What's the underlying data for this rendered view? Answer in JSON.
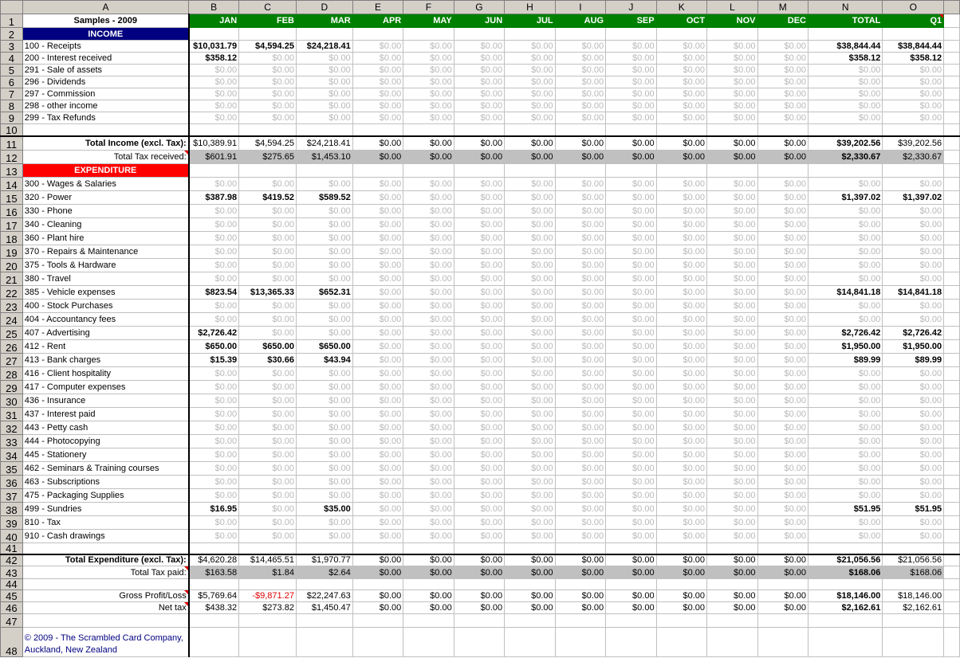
{
  "columns": [
    "A",
    "B",
    "C",
    "D",
    "E",
    "F",
    "G",
    "H",
    "I",
    "J",
    "K",
    "L",
    "M",
    "N",
    "O"
  ],
  "header_row": {
    "title": "Samples - 2009",
    "months": [
      "JAN",
      "FEB",
      "MAR",
      "APR",
      "MAY",
      "JUN",
      "JUL",
      "AUG",
      "SEP",
      "OCT",
      "NOV",
      "DEC",
      "TOTAL",
      "Q1"
    ]
  },
  "colors": {
    "month_header": "#008000",
    "income_header": "#000080",
    "expenditure_header": "#ff0000",
    "tax_band": "#c0c0c0",
    "negative": "#e00000",
    "footer_text": "#000080"
  },
  "rows": [
    {
      "n": "2",
      "kind": "inc",
      "label": "INCOME"
    },
    {
      "n": "3",
      "kind": "item",
      "label": "100 - Receipts",
      "values": [
        "$10,031.79",
        "$4,594.25",
        "$24,218.41",
        "$0.00",
        "$0.00",
        "$0.00",
        "$0.00",
        "$0.00",
        "$0.00",
        "$0.00",
        "$0.00",
        "$0.00",
        "$38,844.44",
        "$38,844.44"
      ]
    },
    {
      "n": "4",
      "kind": "item",
      "label": "200 - Interest received",
      "values": [
        "$358.12",
        "$0.00",
        "$0.00",
        "$0.00",
        "$0.00",
        "$0.00",
        "$0.00",
        "$0.00",
        "$0.00",
        "$0.00",
        "$0.00",
        "$0.00",
        "$358.12",
        "$358.12"
      ]
    },
    {
      "n": "5",
      "kind": "item",
      "label": "291 - Sale of assets",
      "values": [
        "$0.00",
        "$0.00",
        "$0.00",
        "$0.00",
        "$0.00",
        "$0.00",
        "$0.00",
        "$0.00",
        "$0.00",
        "$0.00",
        "$0.00",
        "$0.00",
        "$0.00",
        "$0.00"
      ]
    },
    {
      "n": "6",
      "kind": "item",
      "label": "296 - Dividends",
      "values": [
        "$0.00",
        "$0.00",
        "$0.00",
        "$0.00",
        "$0.00",
        "$0.00",
        "$0.00",
        "$0.00",
        "$0.00",
        "$0.00",
        "$0.00",
        "$0.00",
        "$0.00",
        "$0.00"
      ]
    },
    {
      "n": "7",
      "kind": "item",
      "label": "297 - Commission",
      "values": [
        "$0.00",
        "$0.00",
        "$0.00",
        "$0.00",
        "$0.00",
        "$0.00",
        "$0.00",
        "$0.00",
        "$0.00",
        "$0.00",
        "$0.00",
        "$0.00",
        "$0.00",
        "$0.00"
      ]
    },
    {
      "n": "8",
      "kind": "item",
      "label": "298 - other income",
      "values": [
        "$0.00",
        "$0.00",
        "$0.00",
        "$0.00",
        "$0.00",
        "$0.00",
        "$0.00",
        "$0.00",
        "$0.00",
        "$0.00",
        "$0.00",
        "$0.00",
        "$0.00",
        "$0.00"
      ]
    },
    {
      "n": "9",
      "kind": "item",
      "label": "299 - Tax Refunds",
      "values": [
        "$0.00",
        "$0.00",
        "$0.00",
        "$0.00",
        "$0.00",
        "$0.00",
        "$0.00",
        "$0.00",
        "$0.00",
        "$0.00",
        "$0.00",
        "$0.00",
        "$0.00",
        "$0.00"
      ]
    },
    {
      "n": "10",
      "kind": "blank"
    },
    {
      "n": "11",
      "kind": "total",
      "label": "Total Income (excl. Tax):",
      "values": [
        "$10,389.91",
        "$4,594.25",
        "$24,218.41",
        "$0.00",
        "$0.00",
        "$0.00",
        "$0.00",
        "$0.00",
        "$0.00",
        "$0.00",
        "$0.00",
        "$0.00",
        "$39,202.56",
        "$39,202.56"
      ]
    },
    {
      "n": "12",
      "kind": "tax",
      "label": "Total Tax received:",
      "values": [
        "$601.91",
        "$275.65",
        "$1,453.10",
        "$0.00",
        "$0.00",
        "$0.00",
        "$0.00",
        "$0.00",
        "$0.00",
        "$0.00",
        "$0.00",
        "$0.00",
        "$2,330.67",
        "$2,330.67"
      ]
    },
    {
      "n": "13",
      "kind": "exp",
      "label": "EXPENDITURE"
    },
    {
      "n": "14",
      "kind": "item",
      "label": "300 - Wages & Salaries",
      "values": [
        "$0.00",
        "$0.00",
        "$0.00",
        "$0.00",
        "$0.00",
        "$0.00",
        "$0.00",
        "$0.00",
        "$0.00",
        "$0.00",
        "$0.00",
        "$0.00",
        "$0.00",
        "$0.00"
      ]
    },
    {
      "n": "15",
      "kind": "item",
      "label": "320 - Power",
      "values": [
        "$387.98",
        "$419.52",
        "$589.52",
        "$0.00",
        "$0.00",
        "$0.00",
        "$0.00",
        "$0.00",
        "$0.00",
        "$0.00",
        "$0.00",
        "$0.00",
        "$1,397.02",
        "$1,397.02"
      ]
    },
    {
      "n": "16",
      "kind": "item",
      "label": "330 - Phone",
      "values": [
        "$0.00",
        "$0.00",
        "$0.00",
        "$0.00",
        "$0.00",
        "$0.00",
        "$0.00",
        "$0.00",
        "$0.00",
        "$0.00",
        "$0.00",
        "$0.00",
        "$0.00",
        "$0.00"
      ]
    },
    {
      "n": "17",
      "kind": "item",
      "label": "340 - Cleaning",
      "values": [
        "$0.00",
        "$0.00",
        "$0.00",
        "$0.00",
        "$0.00",
        "$0.00",
        "$0.00",
        "$0.00",
        "$0.00",
        "$0.00",
        "$0.00",
        "$0.00",
        "$0.00",
        "$0.00"
      ]
    },
    {
      "n": "18",
      "kind": "item",
      "label": "360 - Plant hire",
      "values": [
        "$0.00",
        "$0.00",
        "$0.00",
        "$0.00",
        "$0.00",
        "$0.00",
        "$0.00",
        "$0.00",
        "$0.00",
        "$0.00",
        "$0.00",
        "$0.00",
        "$0.00",
        "$0.00"
      ]
    },
    {
      "n": "19",
      "kind": "item",
      "label": "370 - Repairs & Maintenance",
      "values": [
        "$0.00",
        "$0.00",
        "$0.00",
        "$0.00",
        "$0.00",
        "$0.00",
        "$0.00",
        "$0.00",
        "$0.00",
        "$0.00",
        "$0.00",
        "$0.00",
        "$0.00",
        "$0.00"
      ]
    },
    {
      "n": "20",
      "kind": "item",
      "label": "375 - Tools & Hardware",
      "values": [
        "$0.00",
        "$0.00",
        "$0.00",
        "$0.00",
        "$0.00",
        "$0.00",
        "$0.00",
        "$0.00",
        "$0.00",
        "$0.00",
        "$0.00",
        "$0.00",
        "$0.00",
        "$0.00"
      ]
    },
    {
      "n": "21",
      "kind": "item",
      "label": "380 - Travel",
      "values": [
        "$0.00",
        "$0.00",
        "$0.00",
        "$0.00",
        "$0.00",
        "$0.00",
        "$0.00",
        "$0.00",
        "$0.00",
        "$0.00",
        "$0.00",
        "$0.00",
        "$0.00",
        "$0.00"
      ]
    },
    {
      "n": "22",
      "kind": "item",
      "label": "385 - Vehicle expenses",
      "values": [
        "$823.54",
        "$13,365.33",
        "$652.31",
        "$0.00",
        "$0.00",
        "$0.00",
        "$0.00",
        "$0.00",
        "$0.00",
        "$0.00",
        "$0.00",
        "$0.00",
        "$14,841.18",
        "$14,841.18"
      ]
    },
    {
      "n": "23",
      "kind": "item",
      "label": "400 - Stock Purchases",
      "values": [
        "$0.00",
        "$0.00",
        "$0.00",
        "$0.00",
        "$0.00",
        "$0.00",
        "$0.00",
        "$0.00",
        "$0.00",
        "$0.00",
        "$0.00",
        "$0.00",
        "$0.00",
        "$0.00"
      ]
    },
    {
      "n": "24",
      "kind": "item",
      "label": "404 - Accountancy fees",
      "values": [
        "$0.00",
        "$0.00",
        "$0.00",
        "$0.00",
        "$0.00",
        "$0.00",
        "$0.00",
        "$0.00",
        "$0.00",
        "$0.00",
        "$0.00",
        "$0.00",
        "$0.00",
        "$0.00"
      ]
    },
    {
      "n": "25",
      "kind": "item",
      "label": "407 - Advertising",
      "values": [
        "$2,726.42",
        "$0.00",
        "$0.00",
        "$0.00",
        "$0.00",
        "$0.00",
        "$0.00",
        "$0.00",
        "$0.00",
        "$0.00",
        "$0.00",
        "$0.00",
        "$2,726.42",
        "$2,726.42"
      ]
    },
    {
      "n": "26",
      "kind": "item",
      "label": "412 - Rent",
      "values": [
        "$650.00",
        "$650.00",
        "$650.00",
        "$0.00",
        "$0.00",
        "$0.00",
        "$0.00",
        "$0.00",
        "$0.00",
        "$0.00",
        "$0.00",
        "$0.00",
        "$1,950.00",
        "$1,950.00"
      ]
    },
    {
      "n": "27",
      "kind": "item",
      "label": "413 - Bank charges",
      "values": [
        "$15.39",
        "$30.66",
        "$43.94",
        "$0.00",
        "$0.00",
        "$0.00",
        "$0.00",
        "$0.00",
        "$0.00",
        "$0.00",
        "$0.00",
        "$0.00",
        "$89.99",
        "$89.99"
      ]
    },
    {
      "n": "28",
      "kind": "item",
      "label": "416 - Client hospitality",
      "values": [
        "$0.00",
        "$0.00",
        "$0.00",
        "$0.00",
        "$0.00",
        "$0.00",
        "$0.00",
        "$0.00",
        "$0.00",
        "$0.00",
        "$0.00",
        "$0.00",
        "$0.00",
        "$0.00"
      ]
    },
    {
      "n": "29",
      "kind": "item",
      "label": "417 - Computer expenses",
      "values": [
        "$0.00",
        "$0.00",
        "$0.00",
        "$0.00",
        "$0.00",
        "$0.00",
        "$0.00",
        "$0.00",
        "$0.00",
        "$0.00",
        "$0.00",
        "$0.00",
        "$0.00",
        "$0.00"
      ]
    },
    {
      "n": "30",
      "kind": "item",
      "label": "436 - Insurance",
      "values": [
        "$0.00",
        "$0.00",
        "$0.00",
        "$0.00",
        "$0.00",
        "$0.00",
        "$0.00",
        "$0.00",
        "$0.00",
        "$0.00",
        "$0.00",
        "$0.00",
        "$0.00",
        "$0.00"
      ]
    },
    {
      "n": "31",
      "kind": "item",
      "label": "437 - Interest paid",
      "values": [
        "$0.00",
        "$0.00",
        "$0.00",
        "$0.00",
        "$0.00",
        "$0.00",
        "$0.00",
        "$0.00",
        "$0.00",
        "$0.00",
        "$0.00",
        "$0.00",
        "$0.00",
        "$0.00"
      ]
    },
    {
      "n": "32",
      "kind": "item",
      "label": "443 - Petty cash",
      "values": [
        "$0.00",
        "$0.00",
        "$0.00",
        "$0.00",
        "$0.00",
        "$0.00",
        "$0.00",
        "$0.00",
        "$0.00",
        "$0.00",
        "$0.00",
        "$0.00",
        "$0.00",
        "$0.00"
      ]
    },
    {
      "n": "33",
      "kind": "item",
      "label": "444 - Photocopying",
      "values": [
        "$0.00",
        "$0.00",
        "$0.00",
        "$0.00",
        "$0.00",
        "$0.00",
        "$0.00",
        "$0.00",
        "$0.00",
        "$0.00",
        "$0.00",
        "$0.00",
        "$0.00",
        "$0.00"
      ]
    },
    {
      "n": "34",
      "kind": "item",
      "label": "445 - Stationery",
      "values": [
        "$0.00",
        "$0.00",
        "$0.00",
        "$0.00",
        "$0.00",
        "$0.00",
        "$0.00",
        "$0.00",
        "$0.00",
        "$0.00",
        "$0.00",
        "$0.00",
        "$0.00",
        "$0.00"
      ]
    },
    {
      "n": "35",
      "kind": "item",
      "label": "462 - Seminars & Training courses",
      "values": [
        "$0.00",
        "$0.00",
        "$0.00",
        "$0.00",
        "$0.00",
        "$0.00",
        "$0.00",
        "$0.00",
        "$0.00",
        "$0.00",
        "$0.00",
        "$0.00",
        "$0.00",
        "$0.00"
      ]
    },
    {
      "n": "36",
      "kind": "item",
      "label": "463 - Subscriptions",
      "values": [
        "$0.00",
        "$0.00",
        "$0.00",
        "$0.00",
        "$0.00",
        "$0.00",
        "$0.00",
        "$0.00",
        "$0.00",
        "$0.00",
        "$0.00",
        "$0.00",
        "$0.00",
        "$0.00"
      ]
    },
    {
      "n": "37",
      "kind": "item",
      "label": "475 - Packaging Supplies",
      "values": [
        "$0.00",
        "$0.00",
        "$0.00",
        "$0.00",
        "$0.00",
        "$0.00",
        "$0.00",
        "$0.00",
        "$0.00",
        "$0.00",
        "$0.00",
        "$0.00",
        "$0.00",
        "$0.00"
      ]
    },
    {
      "n": "38",
      "kind": "item",
      "label": "499 - Sundries",
      "values": [
        "$16.95",
        "$0.00",
        "$35.00",
        "$0.00",
        "$0.00",
        "$0.00",
        "$0.00",
        "$0.00",
        "$0.00",
        "$0.00",
        "$0.00",
        "$0.00",
        "$51.95",
        "$51.95"
      ]
    },
    {
      "n": "39",
      "kind": "item",
      "label": "810 - Tax",
      "values": [
        "$0.00",
        "$0.00",
        "$0.00",
        "$0.00",
        "$0.00",
        "$0.00",
        "$0.00",
        "$0.00",
        "$0.00",
        "$0.00",
        "$0.00",
        "$0.00",
        "$0.00",
        "$0.00"
      ]
    },
    {
      "n": "40",
      "kind": "item",
      "label": "910 - Cash drawings",
      "values": [
        "$0.00",
        "$0.00",
        "$0.00",
        "$0.00",
        "$0.00",
        "$0.00",
        "$0.00",
        "$0.00",
        "$0.00",
        "$0.00",
        "$0.00",
        "$0.00",
        "$0.00",
        "$0.00"
      ]
    },
    {
      "n": "41",
      "kind": "blank"
    },
    {
      "n": "42",
      "kind": "total",
      "label": "Total Expenditure (excl. Tax):",
      "values": [
        "$4,620.28",
        "$14,465.51",
        "$1,970.77",
        "$0.00",
        "$0.00",
        "$0.00",
        "$0.00",
        "$0.00",
        "$0.00",
        "$0.00",
        "$0.00",
        "$0.00",
        "$21,056.56",
        "$21,056.56"
      ]
    },
    {
      "n": "43",
      "kind": "tax",
      "label": "Total Tax paid:",
      "values": [
        "$163.58",
        "$1.84",
        "$2.64",
        "$0.00",
        "$0.00",
        "$0.00",
        "$0.00",
        "$0.00",
        "$0.00",
        "$0.00",
        "$0.00",
        "$0.00",
        "$168.06",
        "$168.06"
      ]
    },
    {
      "n": "44",
      "kind": "blank"
    },
    {
      "n": "45",
      "kind": "profit",
      "label": "Gross Profit/Loss",
      "values": [
        "$5,769.64",
        "-$9,871.27",
        "$22,247.63",
        "$0.00",
        "$0.00",
        "$0.00",
        "$0.00",
        "$0.00",
        "$0.00",
        "$0.00",
        "$0.00",
        "$0.00",
        "$18,146.00",
        "$18,146.00"
      ]
    },
    {
      "n": "46",
      "kind": "profit",
      "label": "Net tax",
      "values": [
        "$438.32",
        "$273.82",
        "$1,450.47",
        "$0.00",
        "$0.00",
        "$0.00",
        "$0.00",
        "$0.00",
        "$0.00",
        "$0.00",
        "$0.00",
        "$0.00",
        "$2,162.61",
        "$2,162.61"
      ]
    },
    {
      "n": "47",
      "kind": "blank"
    },
    {
      "n": "48",
      "kind": "footer",
      "label": "© 2009 - The Scrambled Card Company, Auckland, New Zealand"
    }
  ]
}
